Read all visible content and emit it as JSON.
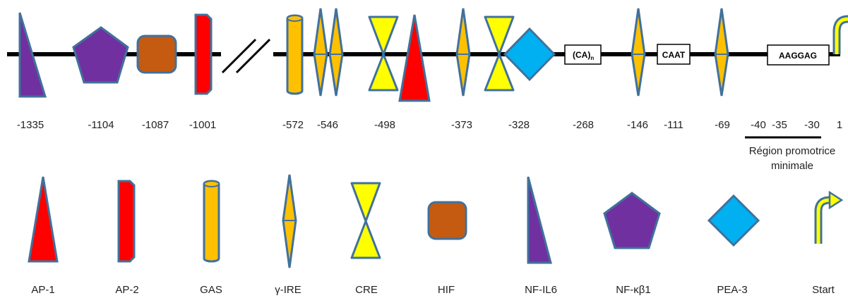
{
  "colors": {
    "line": "#000000",
    "outline": "#41719C",
    "purple": "#7030A0",
    "orange": "#C55A11",
    "red": "#FF0000",
    "gold": "#FFC000",
    "yellow": "#FFFF00",
    "cyan": "#00B0F0"
  },
  "promoter_elements": [
    {
      "shape": "right-triangle",
      "position_label": "-1335"
    },
    {
      "shape": "pentagon",
      "position_label": "-1104"
    },
    {
      "shape": "rounded-square",
      "position_label": "-1087"
    },
    {
      "shape": "tall-rectangle",
      "position_label": "-1001"
    },
    {
      "shape": "line-break"
    },
    {
      "shape": "cylinder",
      "position_label": "-572"
    },
    {
      "shape": "diamond-spindle",
      "position_label": "-546"
    },
    {
      "shape": "hourglass",
      "position_label": "-498"
    },
    {
      "shape": "tall-triangle"
    },
    {
      "shape": "diamond-spindle",
      "position_label": "-373"
    },
    {
      "shape": "hourglass",
      "position_label": "-328"
    },
    {
      "shape": "diamond"
    },
    {
      "shape": "text-box",
      "text": "(CA)",
      "subscript": "n",
      "position_label": "-268"
    },
    {
      "shape": "diamond-spindle",
      "position_label": "-146"
    },
    {
      "shape": "text-box",
      "text": "CAAT",
      "position_label": "-111"
    },
    {
      "shape": "diamond-spindle",
      "position_label": "-69"
    },
    {
      "shape": "text-box",
      "text": "AAGGAG"
    },
    {
      "shape": "start-arrow",
      "position_label": "1"
    }
  ],
  "minimal_region_labels": [
    "-40",
    "-35",
    "-30"
  ],
  "minimal_region": {
    "line1": "Région promotrice",
    "line2": "minimale"
  },
  "legend": [
    {
      "name": "AP-1",
      "shape": "tall-triangle"
    },
    {
      "name": "AP-2",
      "shape": "tall-rectangle"
    },
    {
      "name": "GAS",
      "shape": "cylinder"
    },
    {
      "name": "γ-IRE",
      "shape": "diamond-spindle"
    },
    {
      "name": "CRE",
      "shape": "hourglass"
    },
    {
      "name": "HIF",
      "shape": "rounded-square"
    },
    {
      "name": "NF-IL6",
      "shape": "right-triangle"
    },
    {
      "name": "NF-κβ1",
      "shape": "pentagon"
    },
    {
      "name": "PEA-3",
      "shape": "diamond"
    },
    {
      "name": "Start",
      "shape": "start-arrow"
    }
  ]
}
